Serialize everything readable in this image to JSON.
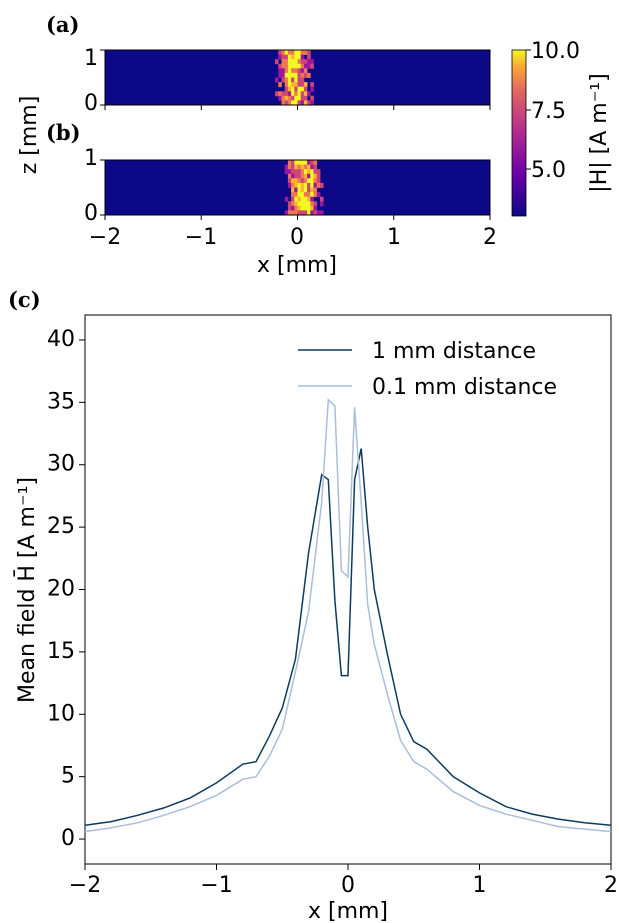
{
  "panel_labels": {
    "a": "(a)",
    "b": "(b)",
    "c": "(c)"
  },
  "colors": {
    "series_1mm": "#0d3b5e",
    "series_01mm": "#a9bedb",
    "heatmap_bg": "#0d0887"
  },
  "chart_data": [
    {
      "type": "heatmap",
      "panel": "a",
      "xlabel": "",
      "ylabel": "",
      "xlim": [
        -2,
        2
      ],
      "ylim": [
        0,
        1
      ],
      "y_ticks": [
        "0",
        "1"
      ],
      "colorscale": "plasma",
      "hot_region_x": [
        -0.3,
        0.3
      ],
      "colorbar": {
        "label": "|H| [A m⁻¹]",
        "range": [
          3,
          10
        ],
        "ticks": [
          "5.0",
          "7.5",
          "10.0"
        ]
      }
    },
    {
      "type": "heatmap",
      "panel": "b",
      "xlabel": "x [mm]",
      "ylabel": "z [mm]",
      "xlim": [
        -2,
        2
      ],
      "ylim": [
        0,
        1
      ],
      "x_ticks": [
        "−2",
        "−1",
        "0",
        "1",
        "2"
      ],
      "y_ticks": [
        "0",
        "1"
      ],
      "colorscale": "plasma",
      "hot_region_x": [
        -0.2,
        0.4
      ]
    },
    {
      "type": "line",
      "panel": "c",
      "xlabel": "x [mm]",
      "ylabel": "Mean field H̄ [A m⁻¹]",
      "xlim": [
        -2,
        2
      ],
      "ylim": [
        -2,
        42
      ],
      "x_ticks": [
        "−2",
        "−1",
        "0",
        "1",
        "2"
      ],
      "y_ticks": [
        "0",
        "5",
        "10",
        "15",
        "20",
        "25",
        "30",
        "35",
        "40"
      ],
      "legend_position": "top-right",
      "series": [
        {
          "name": "1 mm distance",
          "x": [
            -2.0,
            -1.8,
            -1.6,
            -1.4,
            -1.2,
            -1.0,
            -0.8,
            -0.7,
            -0.6,
            -0.5,
            -0.4,
            -0.3,
            -0.2,
            -0.15,
            -0.1,
            -0.05,
            0.0,
            0.05,
            0.1,
            0.15,
            0.2,
            0.3,
            0.4,
            0.5,
            0.6,
            0.8,
            1.0,
            1.2,
            1.4,
            1.6,
            1.8,
            2.0
          ],
          "y": [
            1.1,
            1.4,
            1.9,
            2.5,
            3.3,
            4.5,
            6.0,
            6.2,
            8.2,
            10.5,
            14.4,
            22.9,
            29.2,
            28.8,
            19.1,
            13.1,
            13.1,
            28.8,
            31.3,
            25.0,
            20.0,
            14.8,
            10.0,
            7.8,
            7.2,
            5.0,
            3.7,
            2.6,
            2.0,
            1.6,
            1.3,
            1.1
          ]
        },
        {
          "name": "0.1 mm distance",
          "x": [
            -2.0,
            -1.8,
            -1.6,
            -1.4,
            -1.2,
            -1.0,
            -0.8,
            -0.7,
            -0.6,
            -0.5,
            -0.4,
            -0.3,
            -0.2,
            -0.15,
            -0.1,
            -0.05,
            0.0,
            0.05,
            0.1,
            0.15,
            0.2,
            0.3,
            0.4,
            0.5,
            0.6,
            0.8,
            1.0,
            1.2,
            1.4,
            1.6,
            1.8,
            2.0
          ],
          "y": [
            0.6,
            0.9,
            1.3,
            1.9,
            2.6,
            3.5,
            4.8,
            5.0,
            6.6,
            8.8,
            13.4,
            18.2,
            27.0,
            35.2,
            34.7,
            21.5,
            21.0,
            34.6,
            27.0,
            18.8,
            15.6,
            11.6,
            7.9,
            6.2,
            5.6,
            3.8,
            2.7,
            2.0,
            1.5,
            1.0,
            0.8,
            0.6
          ]
        }
      ]
    }
  ]
}
